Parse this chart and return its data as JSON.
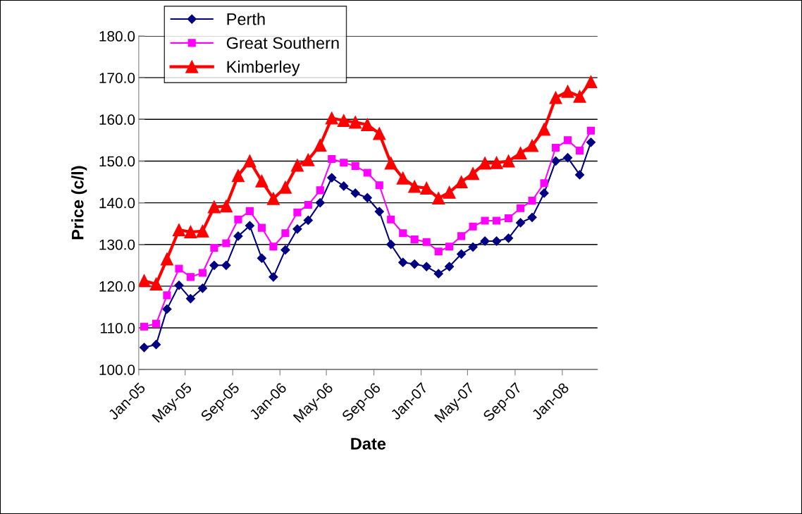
{
  "chart_data": {
    "type": "line",
    "xlabel": "Date",
    "ylabel": "Price (c/l)",
    "x": [
      "2005-01-15",
      "2005-02-15",
      "2005-03-15",
      "2005-04-15",
      "2005-05-15",
      "2005-06-15",
      "2005-07-15",
      "2005-08-15",
      "2005-09-15",
      "2005-10-15",
      "2005-11-15",
      "2005-12-15",
      "2006-01-15",
      "2006-02-15",
      "2006-03-15",
      "2006-04-15",
      "2006-05-15",
      "2006-06-15",
      "2006-07-15",
      "2006-08-15",
      "2006-09-15",
      "2006-10-15",
      "2006-11-15",
      "2006-12-15",
      "2007-01-15",
      "2007-02-15",
      "2007-03-15",
      "2007-04-15",
      "2007-05-15",
      "2007-06-15",
      "2007-07-15",
      "2007-08-15",
      "2007-09-15",
      "2007-10-15",
      "2007-11-15",
      "2007-12-15",
      "2008-01-15",
      "2008-02-15",
      "2008-03-15"
    ],
    "series": [
      {
        "name": "Perth",
        "color": "#000080",
        "marker": "diamond",
        "values": [
          105.3,
          106,
          114.5,
          120.2,
          117,
          119.5,
          125,
          125,
          132,
          134.5,
          126.7,
          122.2,
          128.7,
          133.7,
          135.8,
          140,
          146,
          144,
          142.3,
          141.2,
          137.9,
          130,
          125.7,
          125.3,
          124.7,
          123,
          124.7,
          127.7,
          129.4,
          130.8,
          130.8,
          131.5,
          135.2,
          136.5,
          142.3,
          150,
          150.8,
          146.7,
          154.5
        ]
      },
      {
        "name": "Great Southern",
        "color": "#ff00ff",
        "marker": "square",
        "values": [
          110.3,
          111,
          117.8,
          124.2,
          122.2,
          123.2,
          129.2,
          130.3,
          136,
          138,
          134,
          129.5,
          132.7,
          137.7,
          139.5,
          143,
          150.5,
          149.6,
          148.8,
          147.2,
          144.2,
          136,
          132.7,
          131.2,
          130.6,
          128.3,
          129.5,
          132,
          134.3,
          135.7,
          135.7,
          136.3,
          138.7,
          140.5,
          144.7,
          153.2,
          155,
          152.5,
          157.3
        ]
      },
      {
        "name": "Kimberley",
        "color": "#ff0000",
        "marker": "triangle",
        "values": [
          121.3,
          120.5,
          126.5,
          133.5,
          133,
          133.2,
          139,
          139.2,
          146.5,
          150,
          145.2,
          141,
          143.7,
          149,
          150.3,
          153.8,
          160.3,
          159.7,
          159.3,
          158.7,
          156.6,
          149.5,
          145.9,
          143.9,
          143.5,
          141.1,
          142.5,
          145,
          147,
          149.5,
          149.6,
          150,
          151.9,
          153.7,
          157.6,
          165.2,
          166.7,
          165.5,
          169
        ]
      }
    ],
    "xlim": [
      "2005-01-01",
      "2008-04-01"
    ],
    "xticks": [
      {
        "value": "2005-01-01",
        "label": "Jan-05"
      },
      {
        "value": "2005-05-01",
        "label": "May-05"
      },
      {
        "value": "2005-09-01",
        "label": "Sep-05"
      },
      {
        "value": "2006-01-01",
        "label": "Jan-06"
      },
      {
        "value": "2006-05-01",
        "label": "May-06"
      },
      {
        "value": "2006-09-01",
        "label": "Sep-06"
      },
      {
        "value": "2007-01-01",
        "label": "Jan-07"
      },
      {
        "value": "2007-05-01",
        "label": "May-07"
      },
      {
        "value": "2007-09-01",
        "label": "Sep-07"
      },
      {
        "value": "2008-01-01",
        "label": "Jan-08"
      }
    ],
    "ylim": [
      100,
      180
    ],
    "yticks": [
      {
        "value": 100,
        "label": "100.0"
      },
      {
        "value": 110,
        "label": "110.0"
      },
      {
        "value": 120,
        "label": "120.0"
      },
      {
        "value": 130,
        "label": "130.0"
      },
      {
        "value": 140,
        "label": "140.0"
      },
      {
        "value": 150,
        "label": "150.0"
      },
      {
        "value": 160,
        "label": "160.0"
      },
      {
        "value": 170,
        "label": "170.0"
      },
      {
        "value": 180,
        "label": "180.0"
      }
    ],
    "grid": "y",
    "legend": "top left"
  }
}
